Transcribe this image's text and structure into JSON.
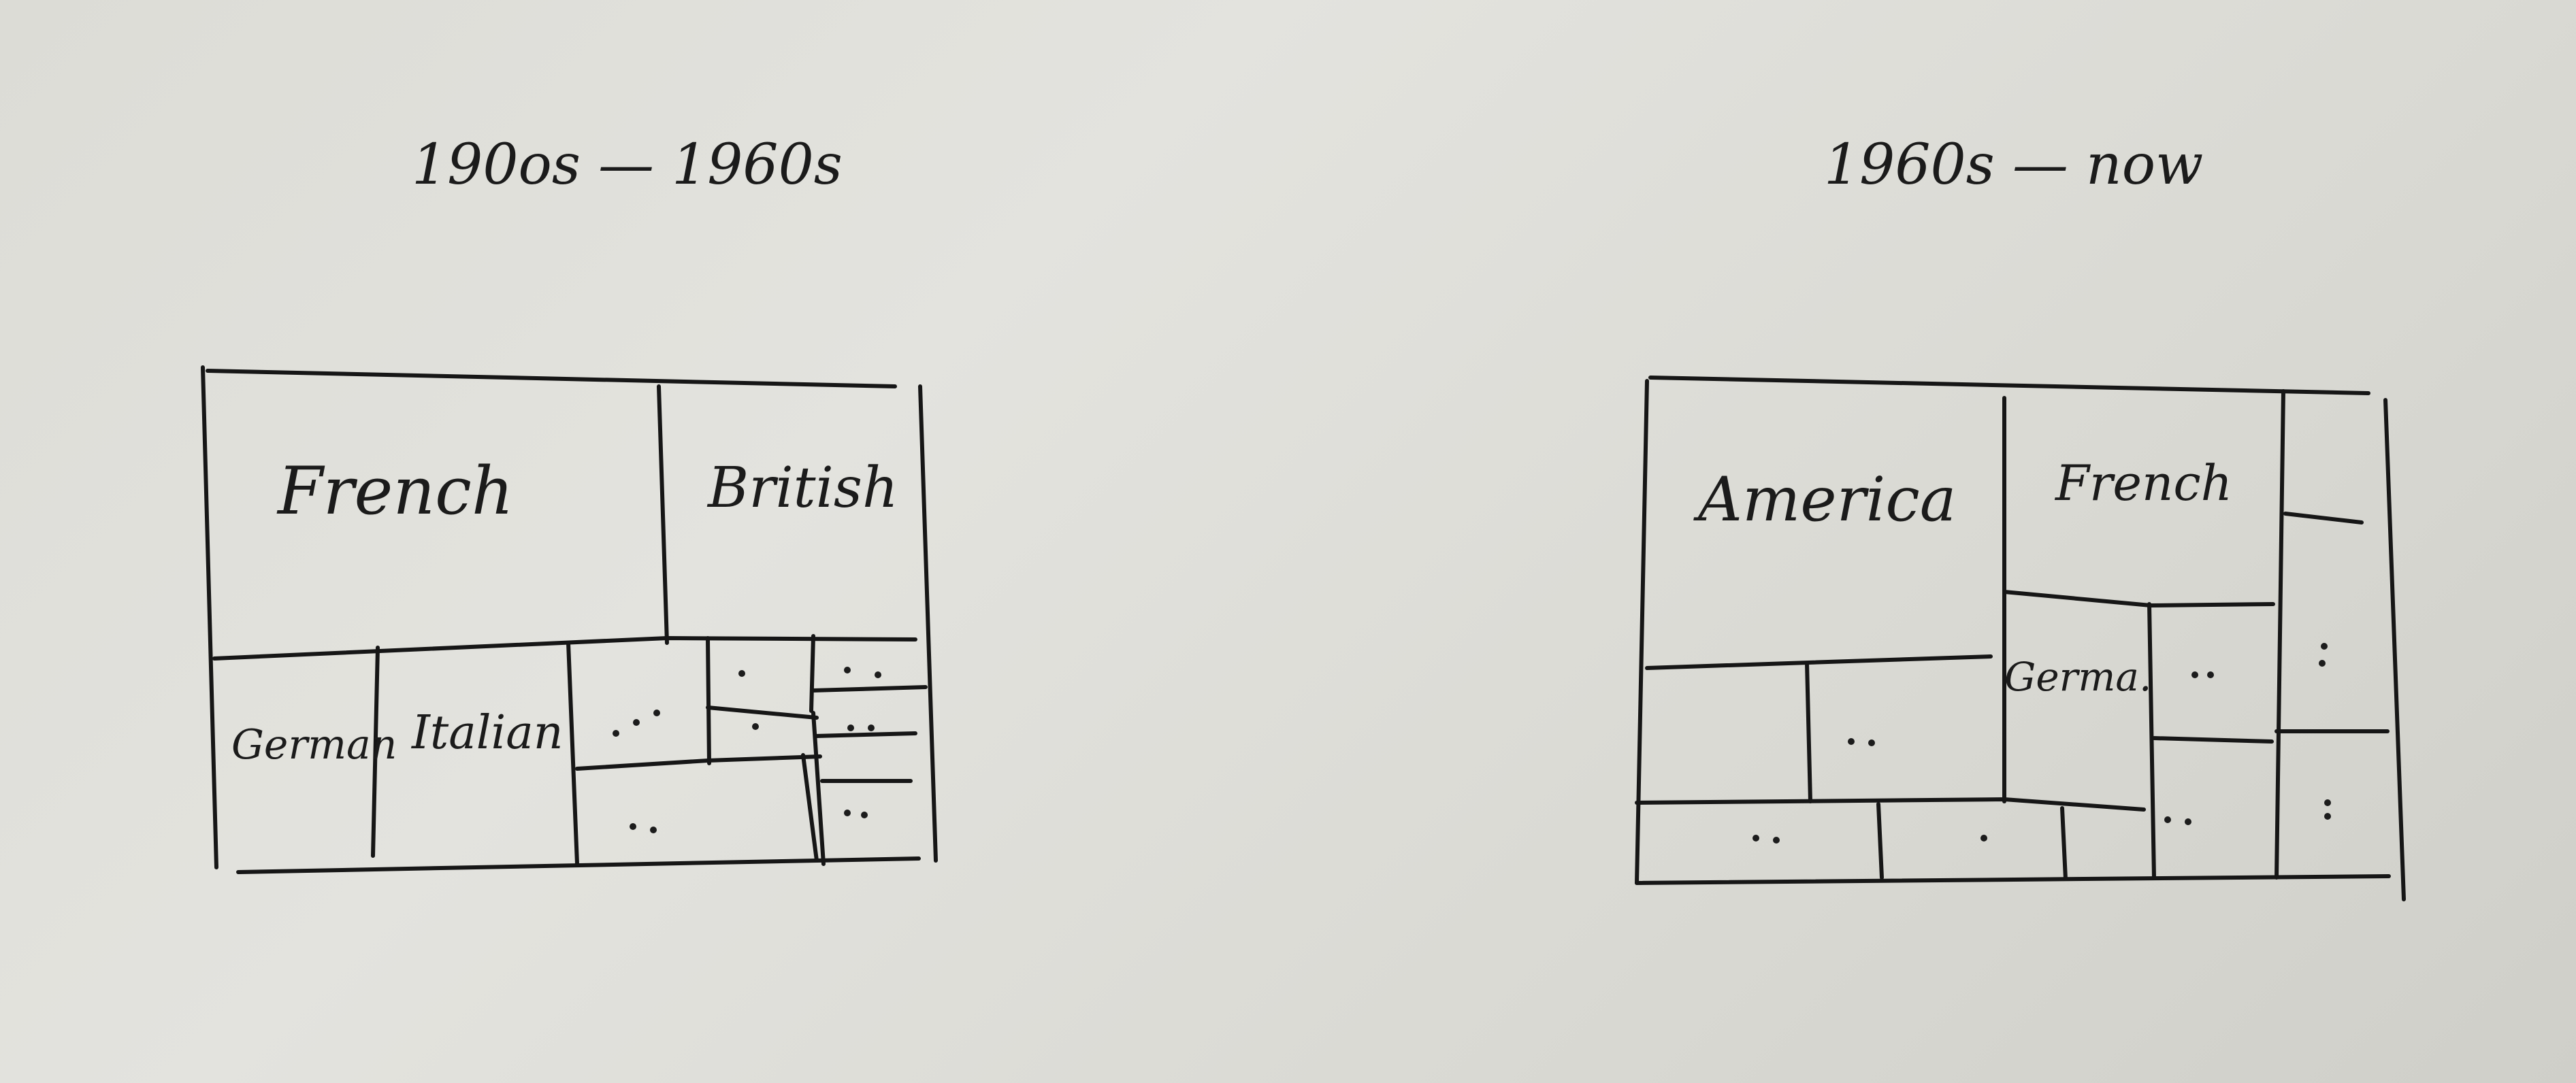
{
  "sketches": {
    "left": {
      "title": "190os — 1960s",
      "labels": {
        "french": "French",
        "british": "British",
        "german": "German",
        "italian": "Italian"
      }
    },
    "right": {
      "title": "1960s — now",
      "labels": {
        "america": "America",
        "french": "French",
        "german": "Germa."
      }
    }
  },
  "colors": {
    "paper": "#dcdcd6",
    "ink": "#161616"
  }
}
